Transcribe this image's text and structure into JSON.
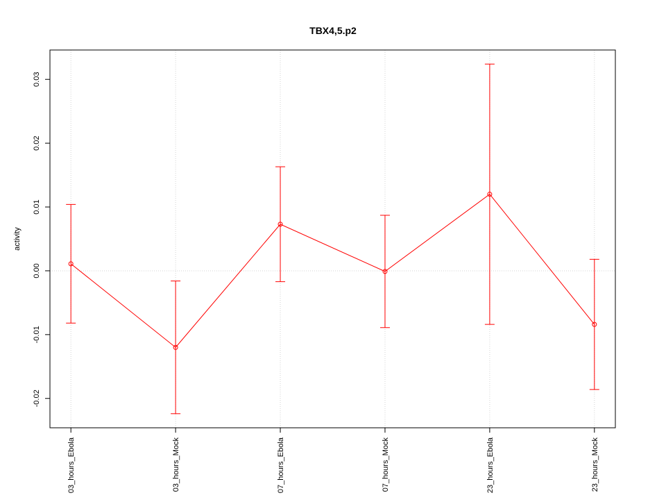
{
  "chart_data": {
    "type": "line",
    "title": "TBX4,5.p2",
    "y_label": "activity",
    "categories": [
      "03_hours_Ebola",
      "03_hours_Mock",
      "07_hours_Ebola",
      "07_hours_Mock",
      "23_hours_Ebola",
      "23_hours_Mock"
    ],
    "series": [
      {
        "color": "#ff0000",
        "values": [
          0.0011,
          -0.012,
          0.0073,
          -0.0001,
          0.012,
          -0.0084
        ],
        "errors": [
          0.0093,
          0.0104,
          0.009,
          0.0088,
          0.0204,
          0.0102
        ]
      }
    ],
    "ylim": [
      -0.0246,
      0.0346
    ],
    "yticks": [
      {
        "value": -0.02,
        "label": "-0.02"
      },
      {
        "value": -0.01,
        "label": "-0.01"
      },
      {
        "value": 0,
        "label": "0.00"
      },
      {
        "value": 0.01,
        "label": "0.01"
      },
      {
        "value": 0.02,
        "label": "0.02"
      },
      {
        "value": 0.03,
        "label": "0.03"
      }
    ],
    "grid": "x",
    "reference_line": 0
  }
}
